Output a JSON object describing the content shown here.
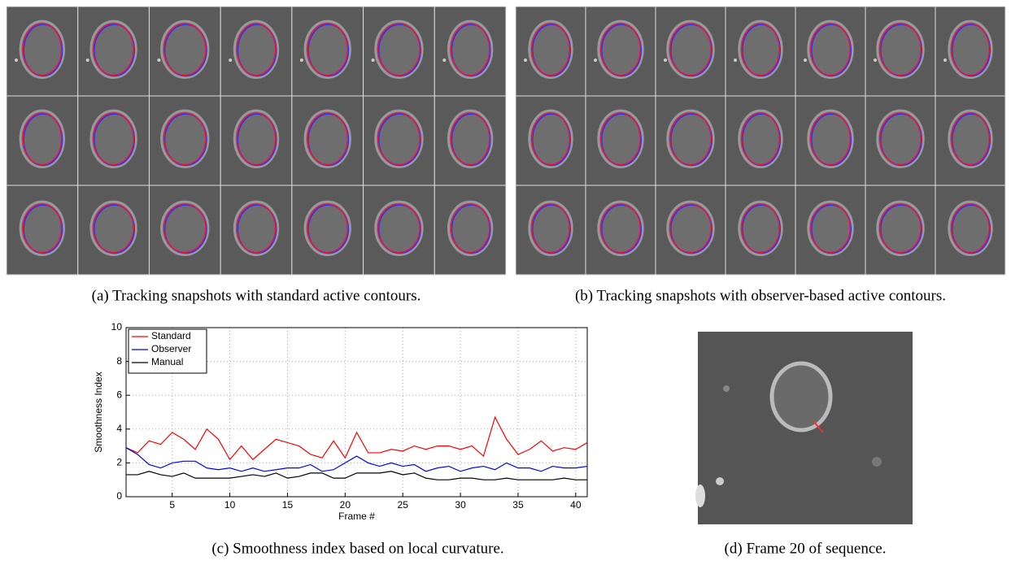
{
  "captions": {
    "a": "(a) Tracking snapshots with standard active contours.",
    "b": "(b) Tracking snapshots with observer-based active contours.",
    "c": "(c) Smoothness index based on local curvature.",
    "d": "(d) Frame 20 of sequence."
  },
  "chart_data": {
    "type": "line",
    "xlabel": "Frame #",
    "ylabel": "Smoothness Index",
    "x": [
      1,
      2,
      3,
      4,
      5,
      6,
      7,
      8,
      9,
      10,
      11,
      12,
      13,
      14,
      15,
      16,
      17,
      18,
      19,
      20,
      21,
      22,
      23,
      24,
      25,
      26,
      27,
      28,
      29,
      30,
      31,
      32,
      33,
      34,
      35,
      36,
      37,
      38,
      39,
      40,
      41
    ],
    "series": [
      {
        "name": "Standard",
        "color": "#ff0000",
        "values": [
          2.9,
          2.6,
          3.3,
          3.1,
          3.8,
          3.4,
          2.8,
          4.0,
          3.4,
          2.2,
          3.0,
          2.2,
          2.8,
          3.4,
          3.2,
          3.0,
          2.5,
          2.3,
          3.3,
          2.3,
          3.8,
          2.6,
          2.6,
          2.8,
          2.7,
          3.0,
          2.8,
          3.0,
          3.0,
          2.8,
          3.0,
          2.4,
          4.7,
          3.4,
          2.5,
          2.8,
          3.3,
          2.7,
          2.9,
          2.8,
          3.2
        ]
      },
      {
        "name": "Observer",
        "color": "#0000ff",
        "values": [
          2.9,
          2.5,
          1.9,
          1.7,
          2.0,
          2.1,
          2.1,
          1.7,
          1.6,
          1.7,
          1.5,
          1.7,
          1.5,
          1.6,
          1.7,
          1.7,
          1.9,
          1.5,
          1.6,
          2.0,
          2.4,
          2.0,
          1.8,
          2.0,
          1.8,
          1.9,
          1.5,
          1.7,
          1.8,
          1.5,
          1.7,
          1.8,
          1.6,
          2.0,
          1.7,
          1.7,
          1.5,
          1.8,
          1.7,
          1.7,
          1.8
        ]
      },
      {
        "name": "Manual",
        "color": "#000000",
        "values": [
          1.3,
          1.3,
          1.5,
          1.3,
          1.2,
          1.4,
          1.1,
          1.1,
          1.1,
          1.1,
          1.2,
          1.3,
          1.2,
          1.4,
          1.1,
          1.2,
          1.4,
          1.4,
          1.1,
          1.1,
          1.4,
          1.4,
          1.4,
          1.5,
          1.3,
          1.4,
          1.1,
          1.0,
          1.0,
          1.1,
          1.1,
          1.0,
          1.0,
          1.1,
          1.0,
          1.0,
          1.0,
          1.0,
          1.1,
          1.0,
          1.0
        ]
      }
    ],
    "xlim": [
      1,
      41
    ],
    "xticks": [
      5,
      10,
      15,
      20,
      25,
      30,
      35,
      40
    ],
    "ylim": [
      0,
      10
    ],
    "yticks": [
      0,
      2,
      4,
      6,
      8,
      10
    ],
    "grid": true,
    "legend": "top-left"
  }
}
